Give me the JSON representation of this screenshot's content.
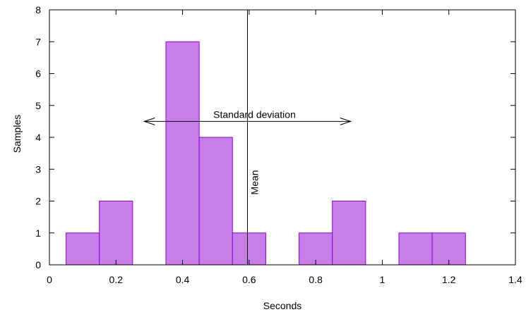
{
  "chart_data": {
    "type": "bar",
    "title": "",
    "xlabel": "Seconds",
    "ylabel": "Samples",
    "xlim": [
      0,
      1.4
    ],
    "ylim": [
      0,
      8
    ],
    "x_ticks": [
      "0",
      "0.2",
      "0.4",
      "0.6",
      "0.8",
      "1",
      "1.2",
      "1.4"
    ],
    "y_ticks": [
      "0",
      "1",
      "2",
      "3",
      "4",
      "5",
      "6",
      "7",
      "8"
    ],
    "grid": false,
    "bar_color": "#c77ee8",
    "bar_edge_color": "#9400d3",
    "bin_width": 0.1,
    "bins": [
      {
        "x": 0.1,
        "value": 1
      },
      {
        "x": 0.2,
        "value": 2
      },
      {
        "x": 0.4,
        "value": 7
      },
      {
        "x": 0.5,
        "value": 4
      },
      {
        "x": 0.6,
        "value": 1
      },
      {
        "x": 0.8,
        "value": 1
      },
      {
        "x": 0.9,
        "value": 2
      },
      {
        "x": 1.1,
        "value": 1
      },
      {
        "x": 1.2,
        "value": 1
      }
    ],
    "annotations": {
      "mean": {
        "x": 0.595,
        "label": "Mean"
      },
      "std_dev": {
        "x_from": 0.285,
        "x_to": 0.905,
        "y": 4.5,
        "label": "Standard deviation"
      }
    }
  }
}
